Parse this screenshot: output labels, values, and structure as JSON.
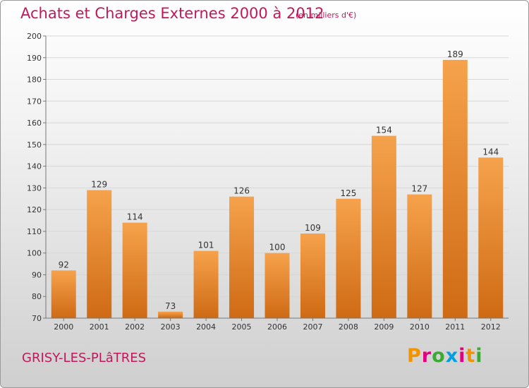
{
  "header": {
    "title": "Achats et Charges Externes 2000 à 2012",
    "subtitle": "(en milliers d'€)"
  },
  "footer": {
    "town": "GRISY-LES-PLâTRES",
    "brand": "Proxiti",
    "brand_colors": [
      "#f29400",
      "#e4007c",
      "#3aaa35",
      "#00a0e3",
      "#e4007c",
      "#f29400",
      "#3aaa35"
    ]
  },
  "colors": {
    "title": "#c2185b",
    "bar_top": "#f6a24c",
    "bar_bottom": "#cf6a14",
    "grid": "#d7d7d7",
    "axis": "#777777"
  },
  "chart_data": {
    "type": "bar",
    "categories": [
      "2000",
      "2001",
      "2002",
      "2003",
      "2004",
      "2005",
      "2006",
      "2007",
      "2008",
      "2009",
      "2010",
      "2011",
      "2012"
    ],
    "values": [
      92,
      129,
      114,
      73,
      101,
      126,
      100,
      109,
      125,
      154,
      127,
      189,
      144
    ],
    "ylim": [
      70,
      200
    ],
    "yticks": [
      70,
      80,
      90,
      100,
      110,
      120,
      130,
      140,
      150,
      160,
      170,
      180,
      190,
      200
    ],
    "grid": true,
    "legend": "none"
  }
}
